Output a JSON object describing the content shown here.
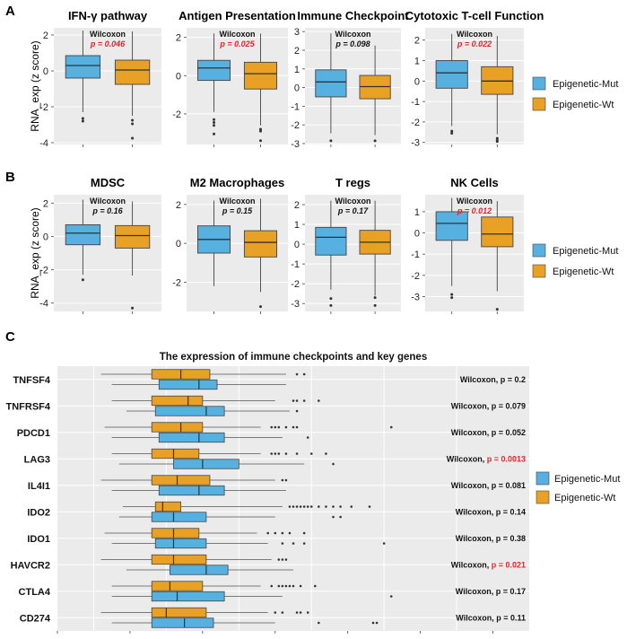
{
  "chart_data": [
    {
      "type": "box",
      "panel": "A",
      "ylabel": "RNA_exp (z score)",
      "groups": [
        "Epigenetic-Mut",
        "Epigenetic-Wt"
      ],
      "colors": {
        "mut": "#56b0e0",
        "wt": "#e8a124"
      },
      "test_label": "Wilcoxon",
      "subplots": [
        {
          "title": "IFN-γ pathway",
          "ylim": [
            -4.1,
            2.4
          ],
          "yticks": [
            2,
            0,
            -2,
            -4
          ],
          "p": "p = 0.046",
          "sig": true,
          "mut": {
            "min": -2.3,
            "q1": -0.4,
            "median": 0.3,
            "q3": 0.85,
            "max": 2.25,
            "outliers": [
              -2.65,
              -2.8
            ]
          },
          "wt": {
            "min": -2.5,
            "q1": -0.75,
            "median": 0.05,
            "q3": 0.6,
            "max": 2.2,
            "outliers": [
              -2.75,
              -2.95,
              -3.75
            ]
          }
        },
        {
          "title": "Antigen Presentation",
          "ylim": [
            -3.6,
            2.5
          ],
          "yticks": [
            2,
            0,
            -2
          ],
          "p": "p = 0.025",
          "sig": true,
          "mut": {
            "min": -1.9,
            "q1": -0.25,
            "median": 0.4,
            "q3": 0.8,
            "max": 2.2,
            "outliers": [
              -2.3,
              -2.45,
              -2.6,
              -3.05
            ]
          },
          "wt": {
            "min": -2.6,
            "q1": -0.7,
            "median": 0.1,
            "q3": 0.7,
            "max": 2.2,
            "outliers": [
              -2.8,
              -2.9,
              -3.4
            ]
          }
        },
        {
          "title": "Immune Checkpoint",
          "ylim": [
            -3.05,
            3.2
          ],
          "yticks": [
            3,
            2,
            1,
            0,
            -1,
            -2,
            -3
          ],
          "p": "p = 0.098",
          "sig": false,
          "mut": {
            "min": -2.45,
            "q1": -0.5,
            "median": 0.3,
            "q3": 0.95,
            "max": 2.9,
            "outliers": [
              -2.85
            ]
          },
          "wt": {
            "min": -2.55,
            "q1": -0.6,
            "median": 0.05,
            "q3": 0.65,
            "max": 2.25,
            "outliers": [
              -2.85
            ]
          }
        },
        {
          "title": "Cytotoxic T-cell Function",
          "ylim": [
            -3.1,
            2.6
          ],
          "yticks": [
            2,
            1,
            0,
            -1,
            -2,
            -3
          ],
          "p": "p = 0.022",
          "sig": true,
          "mut": {
            "min": -2.2,
            "q1": -0.35,
            "median": 0.4,
            "q3": 1.0,
            "max": 2.3,
            "outliers": [
              -2.45,
              -2.55
            ]
          },
          "wt": {
            "min": -2.6,
            "q1": -0.65,
            "median": 0.0,
            "q3": 0.7,
            "max": 2.2,
            "outliers": [
              -2.8,
              -2.9,
              -2.95
            ]
          }
        }
      ]
    },
    {
      "type": "box",
      "panel": "B",
      "ylabel": "RNA_exp (z score)",
      "groups": [
        "Epigenetic-Mut",
        "Epigenetic-Wt"
      ],
      "colors": {
        "mut": "#56b0e0",
        "wt": "#e8a124"
      },
      "test_label": "Wilcoxon",
      "subplots": [
        {
          "title": "MDSC",
          "ylim": [
            -4.5,
            2.5
          ],
          "yticks": [
            2,
            0,
            -2,
            -4
          ],
          "p": "p = 0.16",
          "sig": false,
          "mut": {
            "min": -2.3,
            "q1": -0.5,
            "median": 0.2,
            "q3": 0.7,
            "max": 2.2,
            "outliers": [
              -2.6
            ]
          },
          "wt": {
            "min": -2.35,
            "q1": -0.7,
            "median": 0.05,
            "q3": 0.65,
            "max": 2.1,
            "outliers": [
              -4.3
            ]
          }
        },
        {
          "title": "M2 Macrophages",
          "ylim": [
            -3.5,
            2.5
          ],
          "yticks": [
            2,
            0,
            -2
          ],
          "p": "p = 0.15",
          "sig": false,
          "mut": {
            "min": -2.2,
            "q1": -0.5,
            "median": 0.2,
            "q3": 0.9,
            "max": 2.2,
            "outliers": []
          },
          "wt": {
            "min": -2.5,
            "q1": -0.7,
            "median": 0.05,
            "q3": 0.65,
            "max": 2.3,
            "outliers": [
              -3.25
            ]
          }
        },
        {
          "title": "T regs",
          "ylim": [
            -3.4,
            2.5
          ],
          "yticks": [
            2,
            1,
            0,
            -1,
            -2,
            -3
          ],
          "p": "p = 0.17",
          "sig": false,
          "mut": {
            "min": -2.3,
            "q1": -0.55,
            "median": 0.35,
            "q3": 0.85,
            "max": 2.2,
            "outliers": [
              -2.75,
              -3.1
            ]
          },
          "wt": {
            "min": -2.6,
            "q1": -0.5,
            "median": 0.1,
            "q3": 0.7,
            "max": 2.2,
            "outliers": [
              -2.7,
              -3.1
            ]
          }
        },
        {
          "title": "NK Cells",
          "ylim": [
            -3.7,
            1.8
          ],
          "yticks": [
            1,
            0,
            -1,
            -2,
            -3
          ],
          "p": "p = 0.012",
          "sig": true,
          "mut": {
            "min": -2.5,
            "q1": -0.35,
            "median": 0.45,
            "q3": 1.0,
            "max": 1.65,
            "outliers": [
              -2.9,
              -3.05
            ]
          },
          "wt": {
            "min": -2.75,
            "q1": -0.65,
            "median": -0.05,
            "q3": 0.75,
            "max": 1.5,
            "outliers": [
              -3.6
            ]
          }
        }
      ]
    },
    {
      "type": "box_horizontal",
      "panel": "C",
      "title": "The expression of immune checkpoints and key genes",
      "groups": [
        "Epigenetic-Mut",
        "Epigenetic-Wt"
      ],
      "colors": {
        "mut": "#56b0e0",
        "wt": "#e8a124"
      },
      "xlim": [
        -1,
        12
      ],
      "genes": [
        {
          "name": "TNFSF4",
          "p_label": "Wilcoxon, p = 0.2",
          "sig": false,
          "wt": {
            "min": 0.2,
            "q1": 1.6,
            "median": 2.4,
            "q3": 3.2,
            "max": 5.3,
            "outliers": [
              5.6,
              5.8
            ]
          },
          "mut": {
            "min": 0.5,
            "q1": 1.8,
            "median": 2.9,
            "q3": 3.4,
            "max": 5.3,
            "outliers": []
          }
        },
        {
          "name": "TNFRSF4",
          "p_label": "Wilcoxon, p = 0.079",
          "sig": false,
          "wt": {
            "min": 0.5,
            "q1": 1.6,
            "median": 2.6,
            "q3": 3.0,
            "max": 5.0,
            "outliers": [
              5.5,
              5.6,
              5.8,
              6.2
            ]
          },
          "mut": {
            "min": 0.9,
            "q1": 1.7,
            "median": 3.1,
            "q3": 3.6,
            "max": 5.4,
            "outliers": [
              5.6
            ]
          }
        },
        {
          "name": "PDCD1",
          "p_label": "Wilcoxon, p = 0.052",
          "sig": false,
          "wt": {
            "min": 0.3,
            "q1": 1.6,
            "median": 2.4,
            "q3": 3.0,
            "max": 4.6,
            "outliers": [
              4.9,
              5.0,
              5.1,
              5.3,
              5.5,
              5.6,
              8.2
            ]
          },
          "mut": {
            "min": 0.5,
            "q1": 1.8,
            "median": 2.9,
            "q3": 3.6,
            "max": 5.2,
            "outliers": [
              5.9
            ]
          }
        },
        {
          "name": "LAG3",
          "p_label": "Wilcoxon, p = 0.0013",
          "sig": true,
          "wt": {
            "min": 0.5,
            "q1": 1.6,
            "median": 2.2,
            "q3": 2.9,
            "max": 4.6,
            "outliers": [
              4.9,
              5.0,
              5.1,
              5.3,
              5.6,
              6.0,
              6.4
            ]
          },
          "mut": {
            "min": 0.7,
            "q1": 2.2,
            "median": 3.0,
            "q3": 4.0,
            "max": 5.8,
            "outliers": [
              6.6
            ]
          }
        },
        {
          "name": "IL4I1",
          "p_label": "Wilcoxon, p = 0.081",
          "sig": false,
          "wt": {
            "min": 0.2,
            "q1": 1.6,
            "median": 2.3,
            "q3": 3.2,
            "max": 5.0,
            "outliers": [
              5.2,
              5.3
            ]
          },
          "mut": {
            "min": 0.5,
            "q1": 1.8,
            "median": 2.9,
            "q3": 3.6,
            "max": 5.3,
            "outliers": []
          }
        },
        {
          "name": "IDO2",
          "p_label": "Wilcoxon, p = 0.14",
          "sig": false,
          "wt": {
            "min": 0.8,
            "q1": 1.7,
            "median": 1.9,
            "q3": 2.4,
            "max": 5.2,
            "outliers": [
              5.4,
              5.5,
              5.6,
              5.7,
              5.8,
              5.9,
              6.0,
              6.2,
              6.4,
              6.6,
              6.8,
              7.1,
              7.6
            ]
          },
          "mut": {
            "min": 0.7,
            "q1": 1.6,
            "median": 2.2,
            "q3": 3.1,
            "max": 5.0,
            "outliers": [
              6.6,
              6.8
            ]
          }
        },
        {
          "name": "IDO1",
          "p_label": "Wilcoxon, p = 0.38",
          "sig": false,
          "wt": {
            "min": 0.3,
            "q1": 1.6,
            "median": 2.2,
            "q3": 2.9,
            "max": 4.5,
            "outliers": [
              4.8,
              5.0,
              5.2,
              5.4,
              5.8
            ]
          },
          "mut": {
            "min": 0.5,
            "q1": 1.7,
            "median": 2.2,
            "q3": 3.1,
            "max": 4.8,
            "outliers": [
              5.2,
              5.5,
              5.8,
              8.0
            ]
          }
        },
        {
          "name": "HAVCR2",
          "p_label": "Wilcoxon, p = 0.021",
          "sig": true,
          "wt": {
            "min": 0.2,
            "q1": 1.6,
            "median": 2.2,
            "q3": 3.1,
            "max": 4.9,
            "outliers": [
              5.1,
              5.2,
              5.3
            ]
          },
          "mut": {
            "min": 0.9,
            "q1": 2.1,
            "median": 3.1,
            "q3": 3.7,
            "max": 5.5,
            "outliers": []
          }
        },
        {
          "name": "CTLA4",
          "p_label": "Wilcoxon, p = 0.17",
          "sig": false,
          "wt": {
            "min": 0.5,
            "q1": 1.6,
            "median": 2.1,
            "q3": 3.0,
            "max": 4.6,
            "outliers": [
              4.9,
              5.1,
              5.2,
              5.3,
              5.4,
              5.5,
              5.7,
              6.1
            ]
          },
          "mut": {
            "min": 0.5,
            "q1": 1.6,
            "median": 2.3,
            "q3": 3.6,
            "max": 5.2,
            "outliers": [
              8.2
            ]
          }
        },
        {
          "name": "CD274",
          "p_label": "Wilcoxon, p = 0.11",
          "sig": false,
          "wt": {
            "min": 0.2,
            "q1": 1.6,
            "median": 2.0,
            "q3": 3.1,
            "max": 4.8,
            "outliers": [
              5.0,
              5.2,
              5.6,
              5.7,
              5.9
            ]
          },
          "mut": {
            "min": 0.5,
            "q1": 1.6,
            "median": 2.5,
            "q3": 3.3,
            "max": 5.0,
            "outliers": [
              6.2,
              7.7,
              7.8
            ]
          }
        }
      ]
    }
  ],
  "panel_labels": {
    "a": "A",
    "b": "B",
    "c": "C"
  },
  "legend": {
    "mut": "Epigenetic-Mut",
    "wt": "Epigenetic-Wt"
  }
}
